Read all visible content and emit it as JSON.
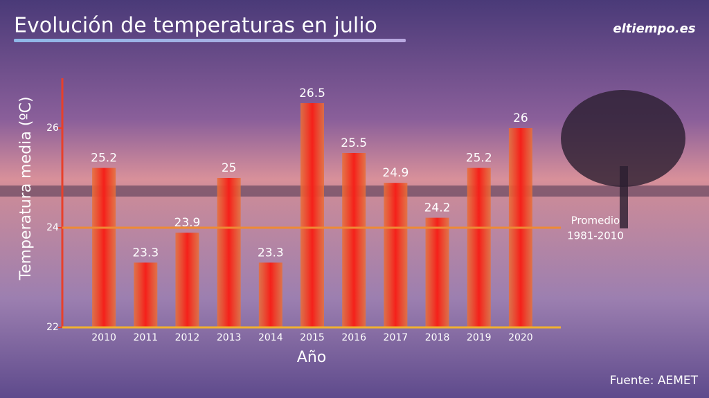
{
  "chart_data": {
    "type": "bar",
    "title": "Evolución de temperaturas en julio",
    "logo": "eltiempo.es",
    "y_label": "Temperatura media (ºC)",
    "x_label": "Año",
    "source": "Fuente: AEMET",
    "categories": [
      "2010",
      "2011",
      "2012",
      "2013",
      "2014",
      "2015",
      "2016",
      "2017",
      "2018",
      "2019",
      "2020"
    ],
    "values": [
      25.2,
      23.3,
      23.9,
      25,
      23.3,
      26.5,
      25.5,
      24.9,
      24.2,
      25.2,
      26
    ],
    "color": "#f0281e",
    "ylim": [
      22,
      27
    ],
    "yticks": [
      22,
      24,
      26
    ],
    "reference_line": {
      "value": 24,
      "label": [
        "Promedio",
        "1981-2010"
      ],
      "color": "#ee8a34"
    }
  }
}
